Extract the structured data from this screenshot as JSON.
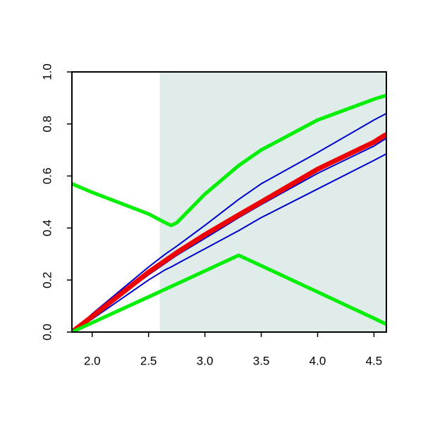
{
  "chart_data": {
    "type": "line",
    "x": [
      1.82,
      2.0,
      2.5,
      2.65,
      2.7,
      2.75,
      3.0,
      3.3,
      3.5,
      4.0,
      4.5,
      4.61
    ],
    "series": [
      {
        "color": "#0000cc",
        "width": 2,
        "values": [
          0,
          0.07,
          0.25,
          0.3,
          0.315,
          0.33,
          0.41,
          0.51,
          0.57,
          0.69,
          0.815,
          0.84
        ]
      },
      {
        "color": "#0000cc",
        "width": 2,
        "values": [
          0,
          0.06,
          0.22,
          0.265,
          0.28,
          0.295,
          0.36,
          0.44,
          0.49,
          0.61,
          0.715,
          0.745
        ]
      },
      {
        "color": "#0000cc",
        "width": 2,
        "values": [
          0,
          0.05,
          0.2,
          0.24,
          0.25,
          0.262,
          0.32,
          0.39,
          0.44,
          0.55,
          0.66,
          0.685
        ]
      },
      {
        "color": "#ee0000",
        "width": 7,
        "values": [
          0,
          0.06,
          0.23,
          0.275,
          0.29,
          0.305,
          0.374,
          0.45,
          0.5,
          0.626,
          0.73,
          0.76
        ]
      },
      {
        "color": "#00ee00",
        "width": 5,
        "values": [
          0.57,
          0.537,
          0.454,
          0.42,
          0.41,
          0.42,
          0.53,
          0.64,
          0.7,
          0.815,
          0.895,
          0.91
        ]
      },
      {
        "color": "#00ee00",
        "width": 5,
        "values": [
          0,
          0.036,
          0.135,
          0.165,
          0.175,
          0.185,
          0.235,
          0.295,
          0.255,
          0.154,
          0.053,
          0.03
        ]
      }
    ],
    "shade_from": 2.6,
    "shade_color": "#dfecea",
    "xlim": [
      1.82,
      4.61
    ],
    "ylim": [
      0,
      1
    ],
    "xticks": [
      {
        "value": 2,
        "label": "2.0"
      },
      2.5,
      {
        "value": 3,
        "label": "3.0"
      },
      3.5,
      {
        "value": 4,
        "label": "4.0"
      },
      4.5
    ],
    "yticks": [
      {
        "value": 0,
        "label": "0.0"
      },
      0.2,
      0.4,
      0.6,
      0.8,
      {
        "value": 1,
        "label": "1.0"
      }
    ]
  }
}
